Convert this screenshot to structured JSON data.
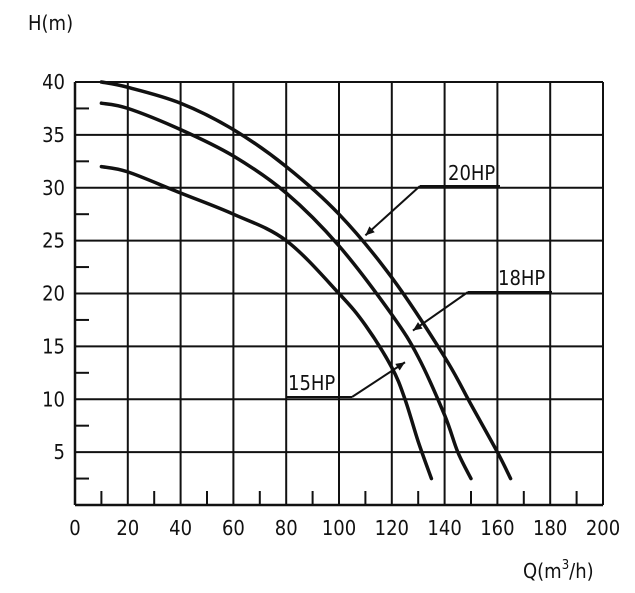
{
  "chart_data": {
    "type": "line",
    "ylabel": "H(m)",
    "xlabel": {
      "base": "Q(m",
      "sup": "3",
      "tail": "/h)"
    },
    "xlim": [
      0,
      200
    ],
    "ylim": [
      0,
      40
    ],
    "grid": true,
    "xticks": [
      0,
      20,
      40,
      60,
      80,
      100,
      120,
      140,
      160,
      180,
      200
    ],
    "yticks": [
      5,
      10,
      15,
      20,
      25,
      30,
      35,
      40
    ],
    "series": [
      {
        "name": "15HP",
        "x": [
          10,
          20,
          40,
          60,
          80,
          100,
          110,
          120,
          125,
          130,
          135
        ],
        "y": [
          32,
          31.5,
          29.5,
          27.5,
          25,
          20,
          17,
          13,
          10,
          6,
          2.5
        ]
      },
      {
        "name": "18HP",
        "x": [
          10,
          20,
          40,
          60,
          80,
          100,
          120,
          130,
          140,
          145,
          150
        ],
        "y": [
          38,
          37.5,
          35.5,
          33,
          29.5,
          24.5,
          18,
          14,
          8.5,
          5,
          2.5
        ]
      },
      {
        "name": "20HP",
        "x": [
          10,
          20,
          40,
          60,
          80,
          100,
          120,
          140,
          150,
          160,
          165
        ],
        "y": [
          40,
          39.5,
          38,
          35.5,
          32,
          27.5,
          21.5,
          14,
          9.5,
          5,
          2.5
        ]
      }
    ]
  },
  "colors": {
    "line": "#111111",
    "grid": "#111111",
    "background": "#ffffff"
  }
}
